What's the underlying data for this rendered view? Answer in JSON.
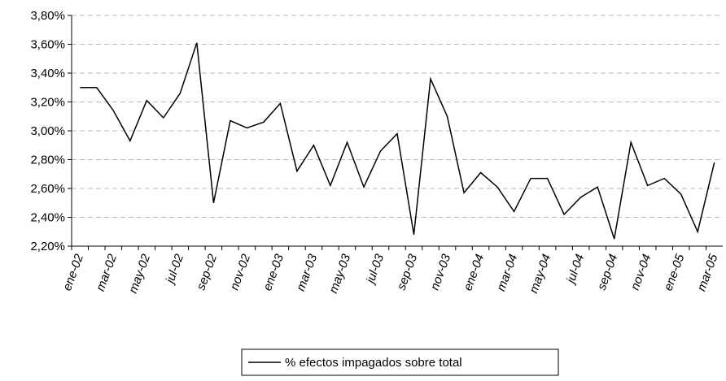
{
  "chart_data": {
    "type": "line",
    "categories": [
      "ene-02",
      null,
      "mar-02",
      null,
      "may-02",
      null,
      "jul-02",
      null,
      "sep-02",
      null,
      "nov-02",
      null,
      "ene-03",
      null,
      "mar-03",
      null,
      "may-03",
      null,
      "jul-03",
      null,
      "sep-03",
      null,
      "nov-03",
      null,
      "ene-04",
      null,
      "mar-04",
      null,
      "may-04",
      null,
      "jul-04",
      null,
      "sep-04",
      null,
      "nov-04",
      null,
      "ene-05",
      null,
      "mar-05"
    ],
    "series": [
      {
        "name": "% efectos impagados sobre total",
        "color": "#000000",
        "values": [
          3.3,
          3.3,
          3.14,
          2.93,
          3.21,
          3.09,
          3.26,
          3.61,
          2.5,
          3.07,
          3.02,
          3.06,
          3.19,
          2.72,
          2.9,
          2.62,
          2.92,
          2.61,
          2.86,
          2.98,
          2.28,
          3.36,
          3.1,
          2.57,
          2.71,
          2.61,
          2.44,
          2.67,
          2.67,
          2.42,
          2.54,
          2.61,
          2.25,
          2.92,
          2.62,
          2.67,
          2.56,
          2.3,
          2.78
        ]
      }
    ],
    "ylim": [
      2.2,
      3.8
    ],
    "yticks": [
      {
        "value": 2.2,
        "label": "2,20%"
      },
      {
        "value": 2.4,
        "label": "2,40%"
      },
      {
        "value": 2.6,
        "label": "2,60%"
      },
      {
        "value": 2.8,
        "label": "2,80%"
      },
      {
        "value": 3.0,
        "label": "3,00%"
      },
      {
        "value": 3.2,
        "label": "3,20%"
      },
      {
        "value": 3.4,
        "label": "3,40%"
      },
      {
        "value": 3.6,
        "label": "3,60%"
      },
      {
        "value": 3.8,
        "label": "3,80%"
      }
    ],
    "grid": true,
    "legend": "bottom"
  }
}
